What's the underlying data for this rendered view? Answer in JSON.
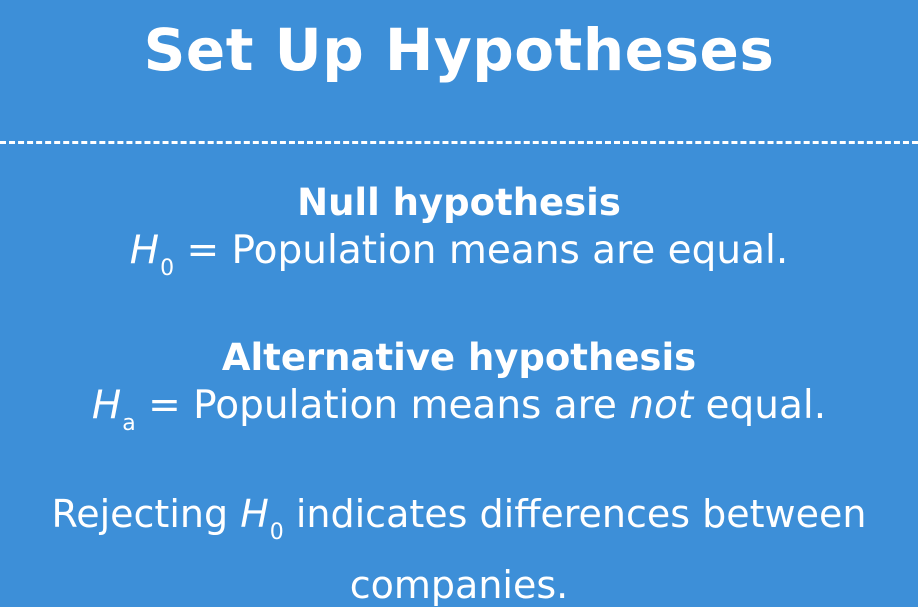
{
  "title": "Set Up Hypotheses",
  "null": {
    "heading": "Null hypothesis",
    "symbol": "H",
    "subscript": "0",
    "statement": "= Population means are equal."
  },
  "alternative": {
    "heading": "Alternative hypothesis",
    "symbol": "H",
    "subscript": "a",
    "statement_before": "= Population means are",
    "statement_emphasis": "not",
    "statement_after": "equal."
  },
  "conclusion": {
    "prefix": "Rejecting",
    "symbol": "H",
    "subscript": "0",
    "line1_suffix": "indicates differences between",
    "line2": "companies."
  }
}
